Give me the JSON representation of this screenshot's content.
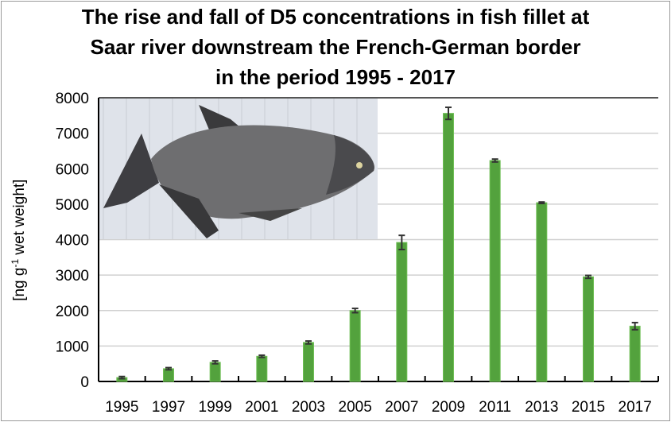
{
  "title_lines": [
    "The rise and fall of D5 concentrations in fish fillet at",
    "Saar river downstream the French-German border",
    "in the period 1995 - 2017"
  ],
  "chart_data": {
    "type": "bar",
    "title": "The rise and fall of D5 concentrations in fish fillet at Saar river downstream the French-German border in the period 1995 - 2017",
    "xlabel": "",
    "ylabel": "[ng g-1 wet weight]",
    "ylabel_parts": {
      "pre": "[ng g",
      "sup": "-1",
      "post": " wet weight]"
    },
    "ylim": [
      0,
      8000
    ],
    "yticks": [
      0,
      1000,
      2000,
      3000,
      4000,
      5000,
      6000,
      7000,
      8000
    ],
    "grid": true,
    "legend": "none",
    "bar_color": "#53a23d",
    "error_color": "#333333",
    "categories": [
      "1995",
      "1997",
      "1999",
      "2001",
      "2003",
      "2005",
      "2007",
      "2009",
      "2011",
      "2013",
      "2015",
      "2017"
    ],
    "values": [
      110,
      360,
      540,
      710,
      1100,
      2000,
      3920,
      7560,
      6230,
      5040,
      2950,
      1560
    ],
    "errors": [
      30,
      30,
      40,
      30,
      40,
      60,
      200,
      170,
      40,
      20,
      40,
      100
    ],
    "inset_image": "bream-fish-photo"
  }
}
